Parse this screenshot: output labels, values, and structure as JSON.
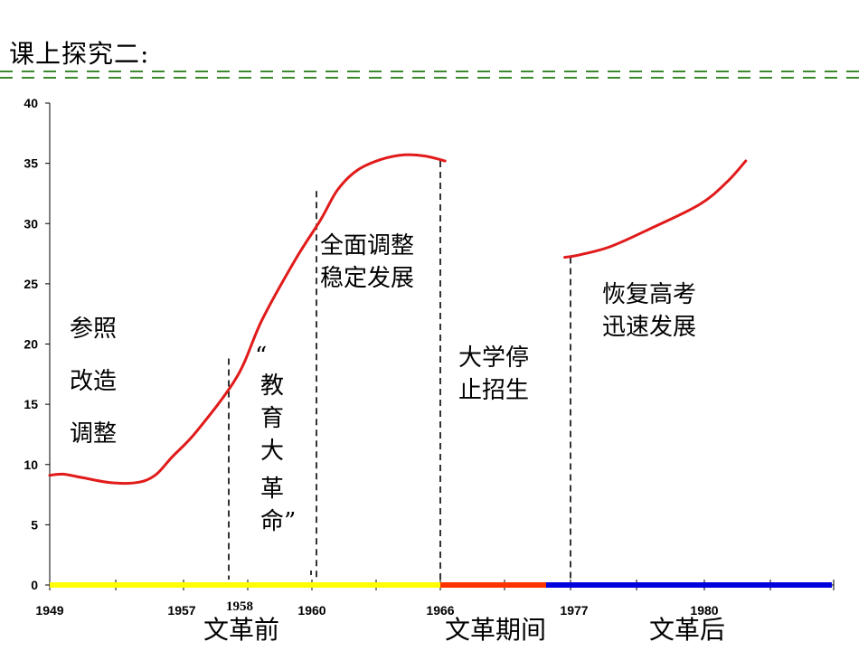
{
  "title": "课上探究二:",
  "chart_data": {
    "type": "line",
    "y_ticks": [
      0,
      5,
      10,
      15,
      20,
      25,
      30,
      35,
      40
    ],
    "ylim": [
      0,
      40
    ],
    "x_labels": [
      "1949",
      "1957",
      "1958",
      "1960",
      "1966",
      "1977",
      "1980"
    ],
    "series": [
      {
        "color": "#e11a1a",
        "segments": [
          [
            [
              1949,
              9.1
            ],
            [
              1949.8,
              9.2
            ],
            [
              1951,
              8.9
            ],
            [
              1952.6,
              8.5
            ],
            [
              1954.2,
              8.5
            ],
            [
              1955.3,
              9.1
            ],
            [
              1956.3,
              10.6
            ],
            [
              1957.3,
              12.8
            ],
            [
              1958.2,
              17.3
            ],
            [
              1958.8,
              22.0
            ],
            [
              1959.6,
              27.0
            ],
            [
              1960.4,
              30.3
            ],
            [
              1961.2,
              32.8
            ],
            [
              1962.1,
              34.4
            ],
            [
              1963.2,
              35.3
            ],
            [
              1964.3,
              35.7
            ],
            [
              1965.3,
              35.6
            ],
            [
              1966.4,
              35.2
            ]
          ],
          [
            [
              1976.5,
              27.2
            ],
            [
              1977.2,
              27.4
            ],
            [
              1977.9,
              28.1
            ],
            [
              1978.8,
              29.6
            ],
            [
              1979.9,
              31.6
            ],
            [
              1980.9,
              33.5
            ],
            [
              1981.6,
              35.2
            ]
          ]
        ]
      }
    ],
    "divider_lines": [
      {
        "x": 1958.2,
        "y": 18.8
      },
      {
        "x": 1960,
        "y": 1.2
      },
      {
        "x": 1960.5,
        "y": 32.7
      },
      {
        "x": 1966.4,
        "y": 35.2
      },
      {
        "x": 1976.5,
        "y": 27.2
      }
    ],
    "period_bar": [
      {
        "label": "文革前",
        "color": "#ffff00"
      },
      {
        "label": "文革期间",
        "color": "#ff3300"
      },
      {
        "label": "文革后",
        "color": "#0000dd"
      }
    ],
    "annotations": {
      "reference": [
        "参照",
        "改造",
        "调整"
      ],
      "revolution": [
        "“",
        "教",
        "育",
        "大",
        "革",
        "命”"
      ],
      "adjustment": [
        "全面调整",
        "稳定发展"
      ],
      "suspension": [
        "大学停",
        "止招生"
      ],
      "recovery": [
        "恢复高考",
        "迅速发展"
      ]
    }
  }
}
